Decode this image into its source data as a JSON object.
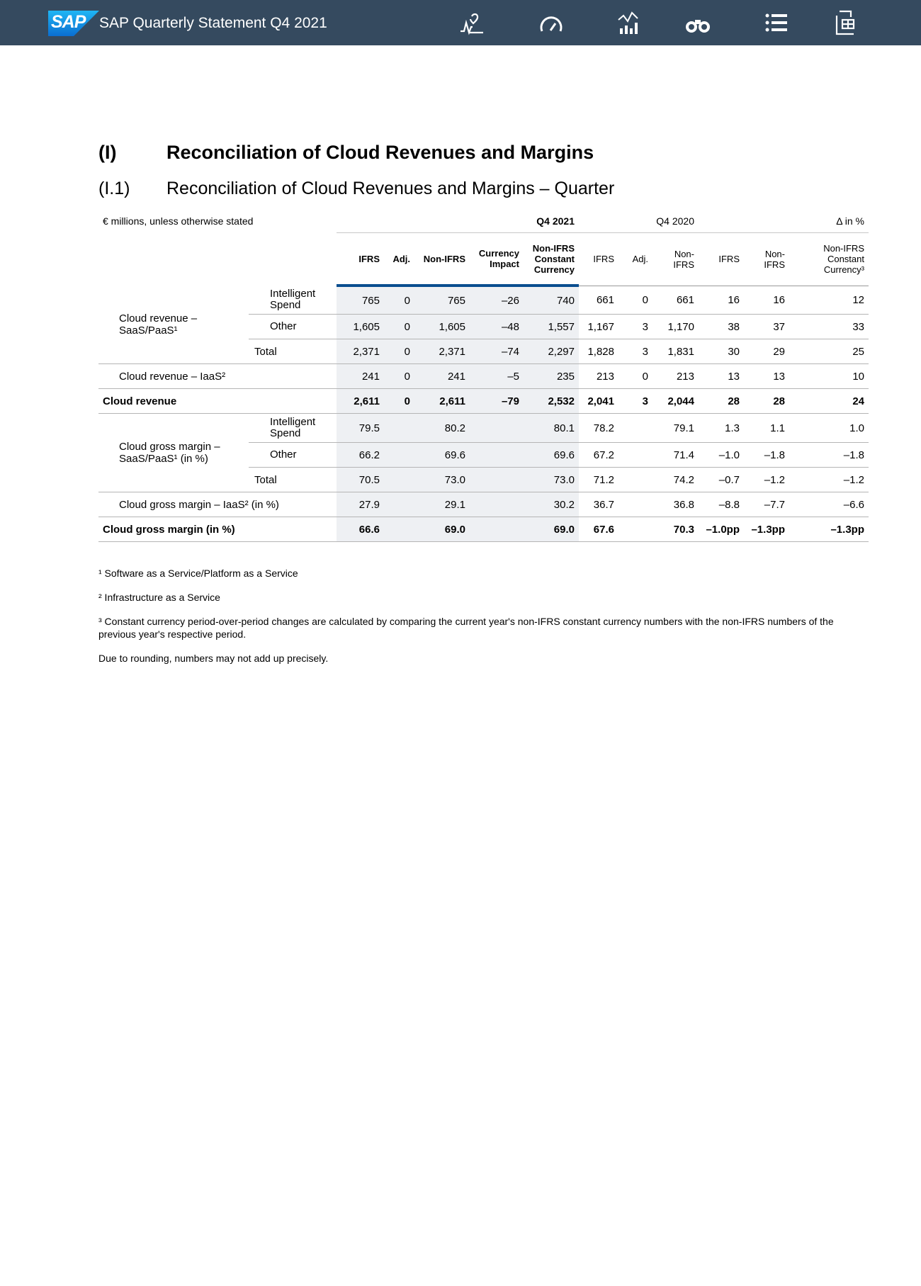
{
  "header": {
    "logo": "SAP",
    "title": "SAP Quarterly Statement Q4 2021"
  },
  "section": {
    "number": "(I)",
    "title": "Reconciliation of Cloud Revenues and Margins"
  },
  "subsection": {
    "number": "(I.1)",
    "title": "Reconciliation of Cloud Revenues and Margins – Quarter"
  },
  "table": {
    "unit_note": "€ millions, unless otherwise stated",
    "periods": [
      "Q4 2021",
      "Q4 2020",
      "Δ in %"
    ],
    "columns": [
      "IFRS",
      "Adj.",
      "Non-IFRS",
      "Currency Impact",
      "Non-IFRS Constant Currency",
      "IFRS",
      "Adj.",
      "Non-IFRS",
      "IFRS",
      "Non-IFRS",
      "Non-IFRS Constant Currency³"
    ],
    "rows": [
      {
        "label": "Cloud revenue – SaaS/PaaS¹",
        "sublabel": "Intelligent Spend",
        "cells": [
          "765",
          "0",
          "765",
          "–26",
          "740",
          "661",
          "0",
          "661",
          "16",
          "16",
          "12"
        ]
      },
      {
        "sublabel": "Other",
        "cells": [
          "1,605",
          "0",
          "1,605",
          "–48",
          "1,557",
          "1,167",
          "3",
          "1,170",
          "38",
          "37",
          "33"
        ]
      },
      {
        "total": "Total",
        "cells": [
          "2,371",
          "0",
          "2,371",
          "–74",
          "2,297",
          "1,828",
          "3",
          "1,831",
          "30",
          "29",
          "25"
        ]
      },
      {
        "label": "Cloud revenue – IaaS²",
        "cells": [
          "241",
          "0",
          "241",
          "–5",
          "235",
          "213",
          "0",
          "213",
          "13",
          "13",
          "10"
        ]
      },
      {
        "label": "Cloud revenue",
        "emphasis": true,
        "cells": [
          "2,611",
          "0",
          "2,611",
          "–79",
          "2,532",
          "2,041",
          "3",
          "2,044",
          "28",
          "28",
          "24"
        ]
      },
      {
        "label": "Cloud gross margin – SaaS/PaaS¹ (in %)",
        "sublabel": "Intelligent Spend",
        "cells": [
          "79.5",
          null,
          "80.2",
          null,
          "80.1",
          "78.2",
          null,
          "79.1",
          "1.3",
          "1.1",
          "1.0"
        ]
      },
      {
        "sublabel": "Other",
        "cells": [
          "66.2",
          null,
          "69.6",
          null,
          "69.6",
          "67.2",
          null,
          "71.4",
          "–1.0",
          "–1.8",
          "–1.8"
        ]
      },
      {
        "total": "Total",
        "cells": [
          "70.5",
          null,
          "73.0",
          null,
          "73.0",
          "71.2",
          null,
          "74.2",
          "–0.7",
          "–1.2",
          "–1.2"
        ]
      },
      {
        "label": "Cloud gross margin – IaaS² (in %)",
        "cells": [
          "27.9",
          null,
          "29.1",
          null,
          "30.2",
          "36.7",
          null,
          "36.8",
          "–8.8",
          "–7.7",
          "–6.6"
        ]
      },
      {
        "label": "Cloud gross margin (in %)",
        "emphasis": true,
        "cells": [
          "66.6",
          null,
          "69.0",
          null,
          "69.0",
          "67.6",
          null,
          "70.3",
          "–1.0pp",
          "–1.3pp",
          "–1.3pp"
        ]
      }
    ]
  },
  "footnotes": [
    "¹ Software as a Service/Platform as a Service",
    "² Infrastructure as a Service",
    "³ Constant currency period-over-period changes are calculated by comparing the current year's non-IFRS constant currency numbers with the non-IFRS numbers of the previous year's respective period.",
    "Due to rounding, numbers may not add up precisely."
  ]
}
